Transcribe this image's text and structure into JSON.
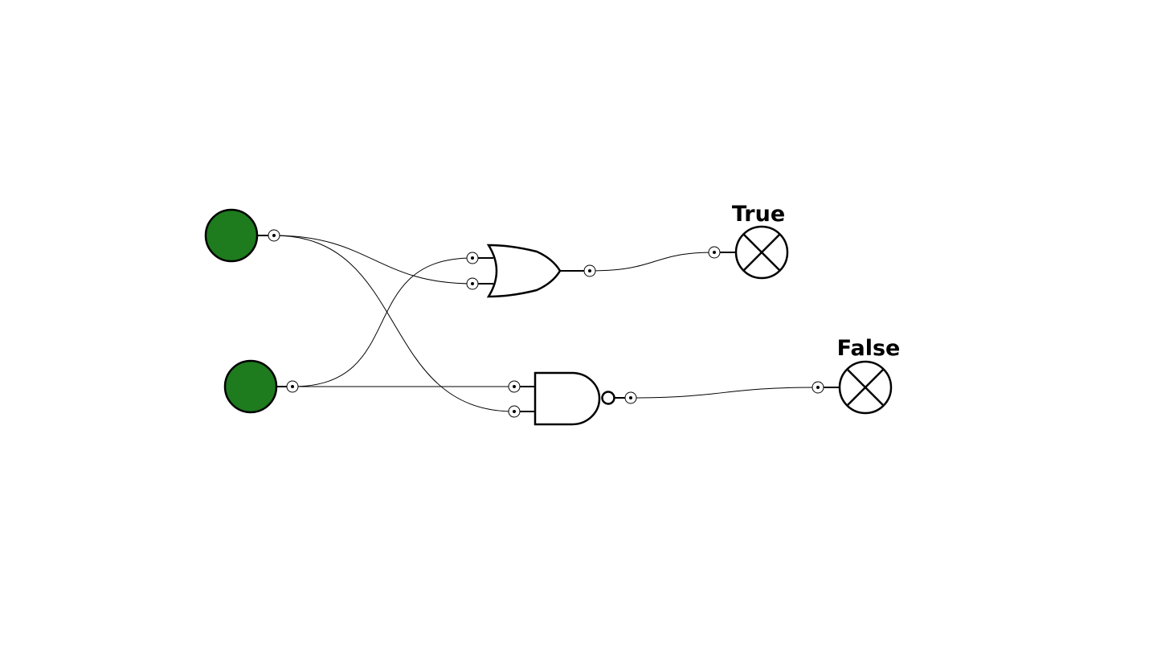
{
  "circuit": {
    "inputs": [
      {
        "id": "input-a",
        "state": "on",
        "color": "#1e7b1e"
      },
      {
        "id": "input-b",
        "state": "on",
        "color": "#1e7b1e"
      }
    ],
    "gates": [
      {
        "id": "or-gate",
        "type": "OR"
      },
      {
        "id": "nand-gate",
        "type": "NAND"
      }
    ],
    "outputs": [
      {
        "id": "output-or",
        "label": "True"
      },
      {
        "id": "output-nand",
        "label": "False"
      }
    ]
  }
}
